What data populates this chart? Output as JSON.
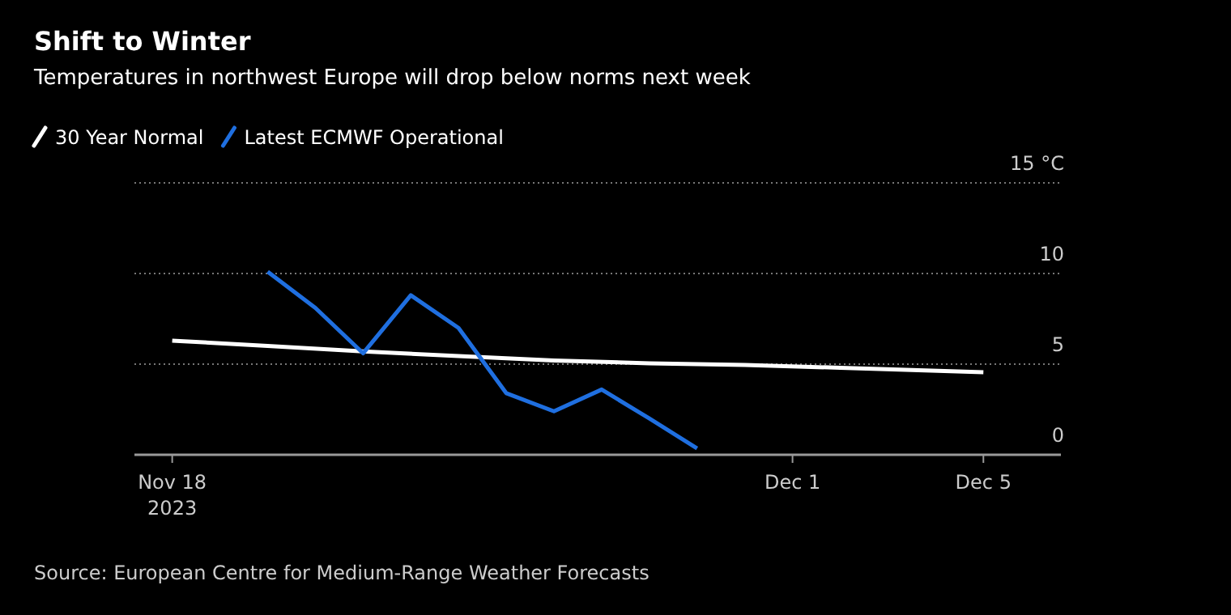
{
  "chart_data": {
    "type": "line",
    "title": "Shift to Winter",
    "subtitle": "Temperatures in northwest Europe will drop below norms next week",
    "series": [
      {
        "name": "30 Year Normal",
        "color": "#ffffff",
        "x": [
          "2023-11-18",
          "2023-11-20",
          "2023-11-22",
          "2023-11-24",
          "2023-11-26",
          "2023-11-28",
          "2023-11-30",
          "2023-12-02",
          "2023-12-05"
        ],
        "values": [
          6.3,
          6.0,
          5.7,
          5.45,
          5.2,
          5.05,
          4.95,
          4.8,
          4.55
        ]
      },
      {
        "name": "Latest ECMWF Operational",
        "color": "#1f6fe0",
        "x": [
          "2023-11-20",
          "2023-11-21",
          "2023-11-22",
          "2023-11-23",
          "2023-11-24",
          "2023-11-25",
          "2023-11-26",
          "2023-11-27",
          "2023-11-28",
          "2023-11-29"
        ],
        "values": [
          10.1,
          8.1,
          5.6,
          8.8,
          7.0,
          3.4,
          2.4,
          3.6,
          2.0,
          0.35
        ]
      }
    ],
    "xlim": [
      "2023-11-17T05:00",
      "2023-12-06T15:00"
    ],
    "xticks": [
      {
        "value": "2023-11-18",
        "label": "Nov 18\n2023"
      },
      {
        "value": "2023-12-01",
        "label": "Dec 1"
      },
      {
        "value": "2023-12-05",
        "label": "Dec 5"
      }
    ],
    "ylim": [
      0,
      15
    ],
    "yticks": [
      0,
      5,
      10,
      {
        "value": 15,
        "label": "15 °C"
      }
    ],
    "grid": "y",
    "legend": "top left",
    "line_style": "solid",
    "marker": "none",
    "annotations": [
      "Source: European Centre for Medium-Range Weather Forecasts"
    ]
  }
}
